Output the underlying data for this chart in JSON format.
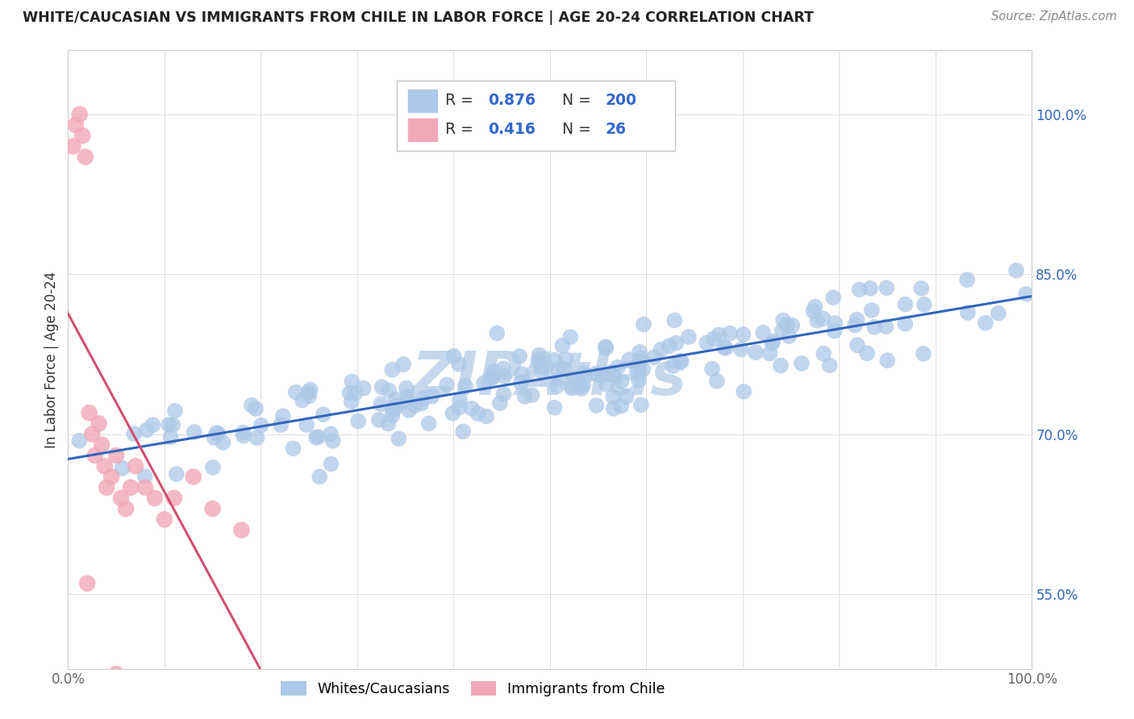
{
  "title": "WHITE/CAUCASIAN VS IMMIGRANTS FROM CHILE IN LABOR FORCE | AGE 20-24 CORRELATION CHART",
  "source": "Source: ZipAtlas.com",
  "ylabel": "In Labor Force | Age 20-24",
  "xlim": [
    0.0,
    1.0
  ],
  "ylim": [
    0.48,
    1.06
  ],
  "xticks": [
    0.0,
    0.1,
    0.2,
    0.3,
    0.4,
    0.5,
    0.6,
    0.7,
    0.8,
    0.9,
    1.0
  ],
  "yticks": [
    0.55,
    0.7,
    0.85,
    1.0
  ],
  "xtick_labels": [
    "0.0%",
    "",
    "",
    "",
    "",
    "",
    "",
    "",
    "",
    "",
    "100.0%"
  ],
  "ytick_labels": [
    "55.0%",
    "70.0%",
    "85.0%",
    "100.0%"
  ],
  "blue_color": "#adc8e8",
  "pink_color": "#f0a8b8",
  "blue_line_color": "#3366bb",
  "pink_line_color": "#d05070",
  "watermark_color": "#c5d8ec",
  "R_blue": 0.876,
  "N_blue": 200,
  "R_pink": 0.416,
  "N_pink": 26,
  "legend_blue_label": "Whites/Caucasians",
  "legend_pink_label": "Immigrants from Chile",
  "title_color": "#222222",
  "source_color": "#888888",
  "axis_label_color": "#333333",
  "tick_color": "#666666",
  "ytick_color": "#3366bb",
  "grid_color": "#dddddd",
  "legend_value_color": "#3366cc",
  "legend_text_color": "#333333"
}
